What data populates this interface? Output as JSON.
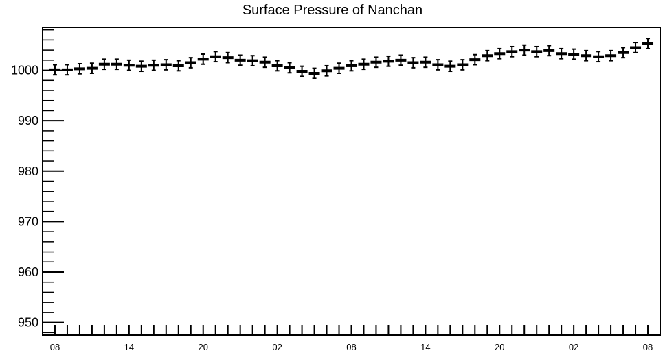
{
  "chart_data": {
    "type": "scatter",
    "title": "Surface Pressure of Nanchan",
    "xlabel": "",
    "ylabel": "",
    "ylim": [
      947.5,
      1008.5
    ],
    "y_ticks": [
      950,
      960,
      970,
      980,
      990,
      1000
    ],
    "x_tick_labels": [
      "08",
      "14",
      "20",
      "02",
      "08",
      "14",
      "20",
      "02",
      "08"
    ],
    "x_tick_hours": [
      0,
      6,
      12,
      18,
      24,
      30,
      36,
      42,
      48
    ],
    "xlim_hours": [
      -1,
      49
    ],
    "grid": false,
    "error": 1.0,
    "series": [
      {
        "x_hours": [
          0,
          1,
          2,
          3,
          4,
          5,
          6,
          7,
          8,
          9,
          10,
          11,
          12,
          13,
          14,
          15,
          16,
          17,
          18,
          19,
          20,
          21,
          22,
          23,
          24,
          25,
          26,
          27,
          28,
          29,
          30,
          31,
          32,
          33,
          34,
          35,
          36,
          37,
          38,
          39,
          40,
          41,
          42,
          43,
          44,
          45,
          46,
          47,
          48
        ],
        "values": [
          1000.1,
          1000.1,
          1000.3,
          1000.4,
          1001.2,
          1001.2,
          1001.0,
          1000.8,
          1001.0,
          1001.1,
          1000.9,
          1001.5,
          1002.2,
          1002.7,
          1002.5,
          1002.0,
          1001.9,
          1001.6,
          1000.9,
          1000.5,
          999.8,
          999.4,
          999.9,
          1000.4,
          1000.9,
          1001.2,
          1001.6,
          1001.8,
          1002.0,
          1001.5,
          1001.6,
          1001.1,
          1000.8,
          1001.1,
          1002.1,
          1002.9,
          1003.3,
          1003.7,
          1004.0,
          1003.7,
          1003.9,
          1003.3,
          1003.2,
          1002.9,
          1002.7,
          1002.9,
          1003.5,
          1004.5,
          1005.3
        ]
      }
    ]
  }
}
